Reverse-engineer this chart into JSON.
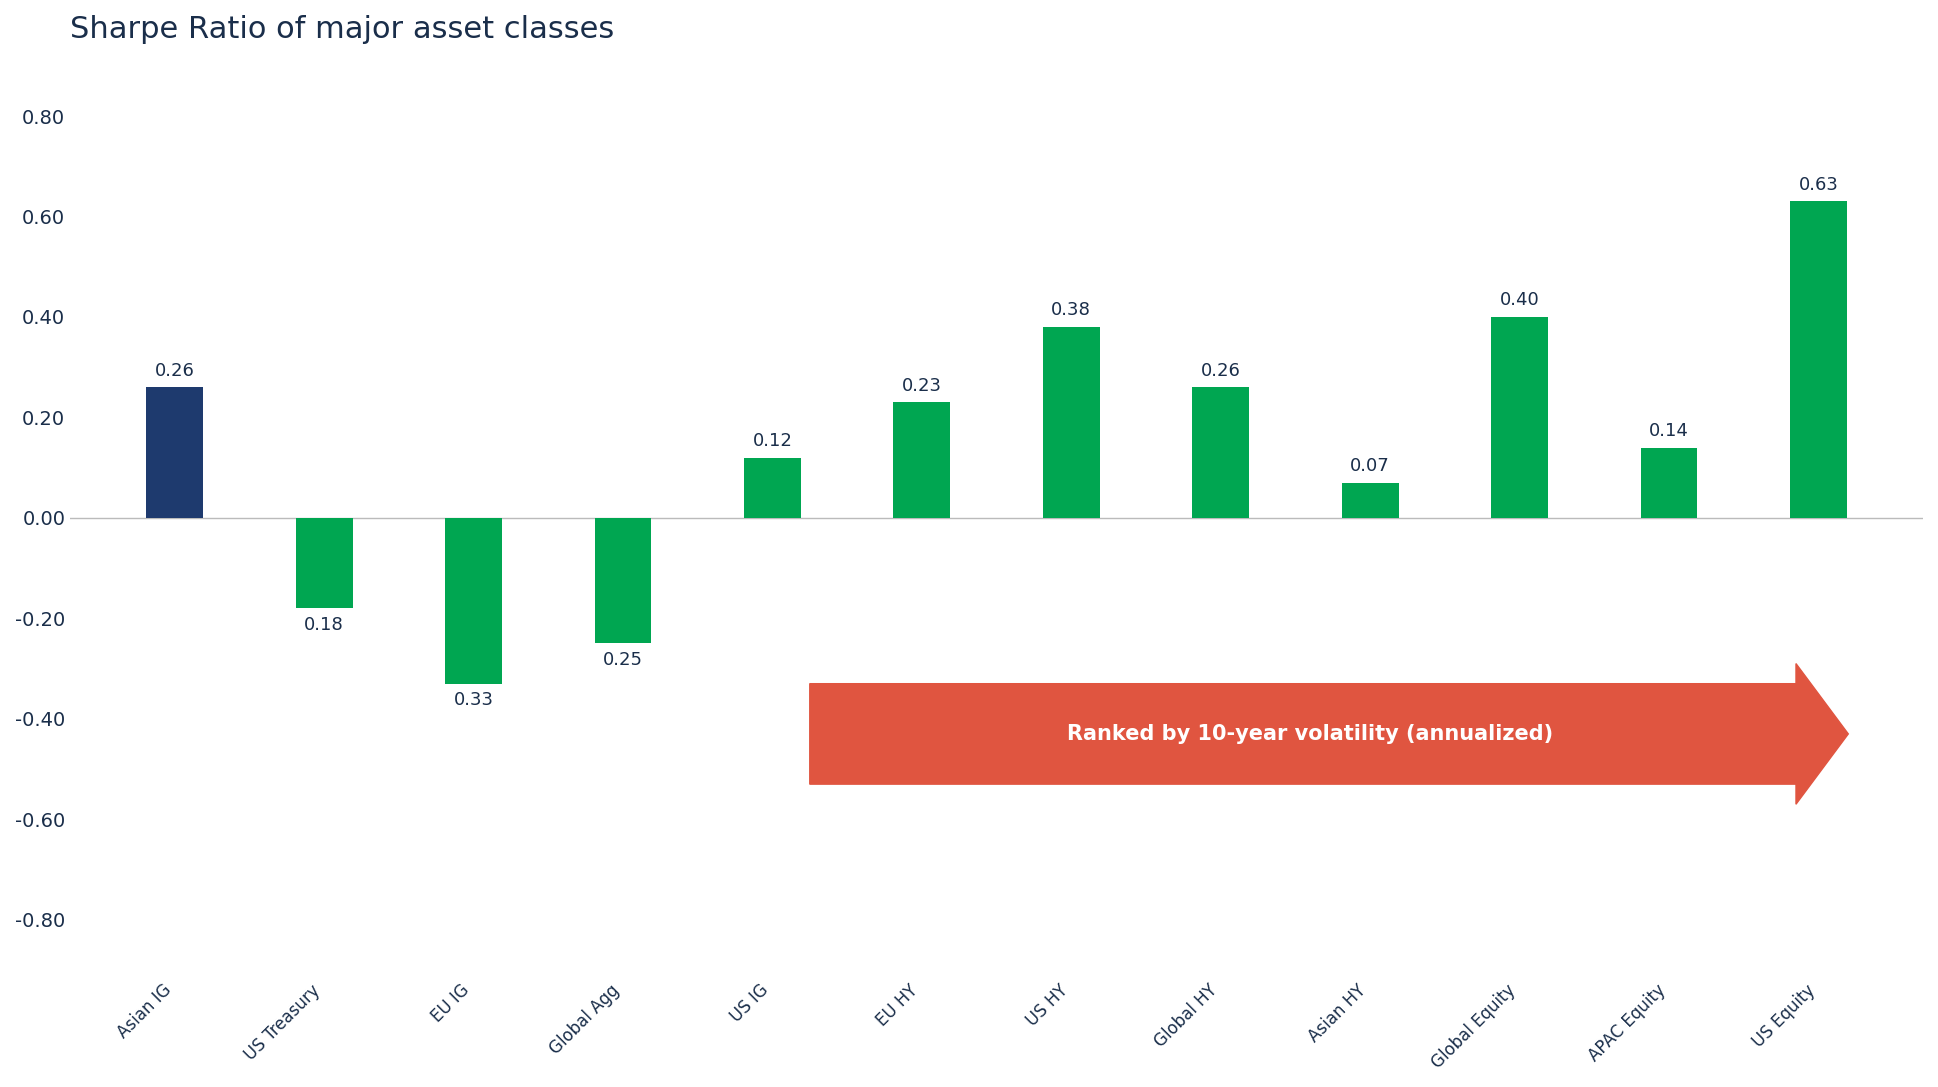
{
  "title": "Sharpe Ratio of major asset classes",
  "categories": [
    "Asian IG",
    "US Treasury",
    "EU IG",
    "Global Agg",
    "US IG",
    "EU HY",
    "US HY",
    "Global HY",
    "Asian HY",
    "Global Equity",
    "APAC Equity",
    "US Equity"
  ],
  "values": [
    0.26,
    -0.18,
    -0.33,
    -0.25,
    0.12,
    0.23,
    0.38,
    0.26,
    0.07,
    0.4,
    0.14,
    0.63
  ],
  "bar_colors": [
    "#1e3a6e",
    "#00a651",
    "#00a651",
    "#00a651",
    "#00a651",
    "#00a651",
    "#00a651",
    "#00a651",
    "#00a651",
    "#00a651",
    "#00a651",
    "#00a651"
  ],
  "ylim": [
    -0.9,
    0.9
  ],
  "yticks": [
    -0.8,
    -0.6,
    -0.4,
    -0.2,
    0.0,
    0.2,
    0.4,
    0.6,
    0.8
  ],
  "ytick_labels": [
    "-0.80",
    "-0.60",
    "-0.40",
    "-0.20",
    "0.00",
    "0.20",
    "0.40",
    "0.60",
    "0.80"
  ],
  "background_color": "#ffffff",
  "title_color": "#1a2e4a",
  "axis_text_color": "#1a2e4a",
  "arrow_text": "Ranked by 10-year volatility (annualized)",
  "arrow_color": "#e05540",
  "arrow_text_color": "#ffffff",
  "title_fontsize": 22,
  "label_fontsize": 12,
  "value_fontsize": 13,
  "tick_fontsize": 14,
  "bar_width": 0.38
}
